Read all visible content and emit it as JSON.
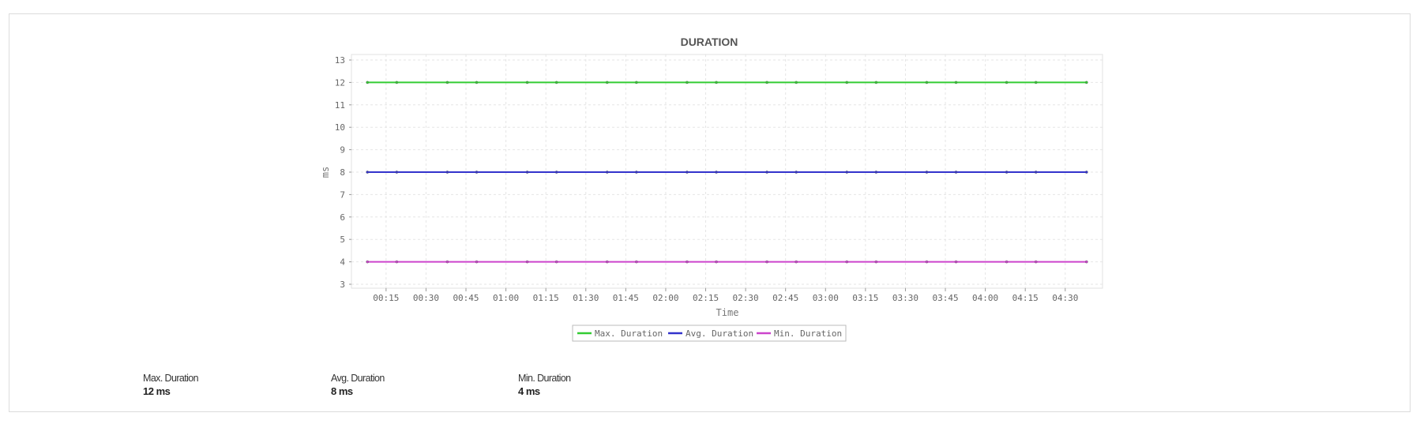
{
  "chart_data": {
    "type": "line",
    "title": "DURATION",
    "xlabel": "Time",
    "ylabel": "ms",
    "xlim": [
      "00:02",
      "04:44"
    ],
    "ylim": [
      3,
      13
    ],
    "grid": true,
    "legend_position": "bottom",
    "x_ticks": [
      "00:15",
      "00:30",
      "00:45",
      "01:00",
      "01:15",
      "01:30",
      "01:45",
      "02:00",
      "02:15",
      "02:30",
      "02:45",
      "03:00",
      "03:15",
      "03:30",
      "03:45",
      "04:00",
      "04:15",
      "04:30"
    ],
    "y_ticks": [
      3,
      4,
      5,
      6,
      7,
      8,
      9,
      10,
      11,
      12,
      13
    ],
    "x": [
      "00:08",
      "00:19",
      "00:38",
      "00:49",
      "01:08",
      "01:19",
      "01:38",
      "01:49",
      "02:08",
      "02:19",
      "02:38",
      "02:49",
      "03:08",
      "03:19",
      "03:38",
      "03:49",
      "04:08",
      "04:19",
      "04:38"
    ],
    "series": [
      {
        "name": "Max. Duration",
        "color": "#33cc33",
        "values": [
          12,
          12,
          12,
          12,
          12,
          12,
          12,
          12,
          12,
          12,
          12,
          12,
          12,
          12,
          12,
          12,
          12,
          12,
          12
        ]
      },
      {
        "name": "Avg. Duration",
        "color": "#3333cc",
        "values": [
          8,
          8,
          8,
          8,
          8,
          8,
          8,
          8,
          8,
          8,
          8,
          8,
          8,
          8,
          8,
          8,
          8,
          8,
          8
        ]
      },
      {
        "name": "Min. Duration",
        "color": "#cc44cc",
        "values": [
          4,
          4,
          4,
          4,
          4,
          4,
          4,
          4,
          4,
          4,
          4,
          4,
          4,
          4,
          4,
          4,
          4,
          4,
          4
        ]
      }
    ]
  },
  "summary": [
    {
      "label": "Max. Duration",
      "value": "12 ms"
    },
    {
      "label": "Avg. Duration",
      "value": "8 ms"
    },
    {
      "label": "Min. Duration",
      "value": "4 ms"
    }
  ]
}
